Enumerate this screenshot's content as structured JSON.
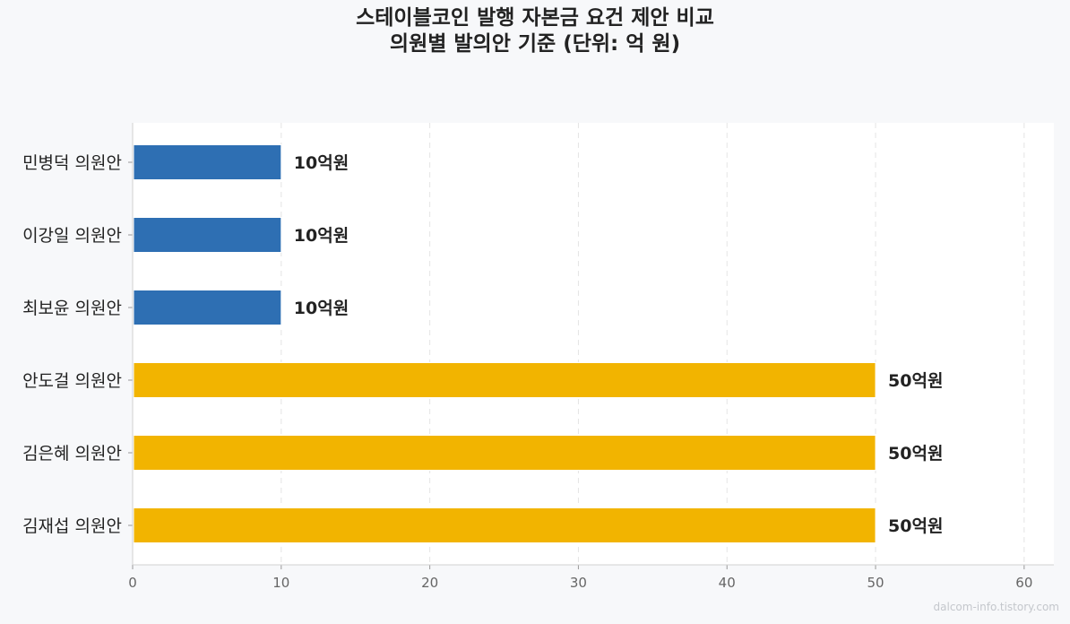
{
  "chart_data": {
    "type": "bar",
    "orientation": "horizontal",
    "title": "스테이블코인 발행 자본금 요건 제안 비교",
    "subtitle": "의원별 발의안 기준 (단위: 억 원)",
    "categories": [
      "민병덕 의원안",
      "이강일 의원안",
      "최보윤 의원안",
      "안도걸 의원안",
      "김은혜 의원안",
      "김재섭 의원안"
    ],
    "values": [
      10,
      10,
      10,
      50,
      50,
      50
    ],
    "value_labels": [
      "10억원",
      "10억원",
      "10억원",
      "50억원",
      "50억원",
      "50억원"
    ],
    "bar_colors": [
      "#2e6fb3",
      "#2e6fb3",
      "#2e6fb3",
      "#f2b400",
      "#f2b400",
      "#f2b400"
    ],
    "xlim": [
      0,
      62
    ],
    "xticks": [
      0,
      10,
      20,
      30,
      40,
      50,
      60
    ],
    "grid": "vertical-dashed",
    "xlabel": "",
    "ylabel": ""
  },
  "watermark": "dalcom-info.tistory.com",
  "colors": {
    "background": "#f7f8fa",
    "plot_background": "#ffffff",
    "accent_blue": "#2e6fb3",
    "accent_gold": "#f2b400"
  }
}
